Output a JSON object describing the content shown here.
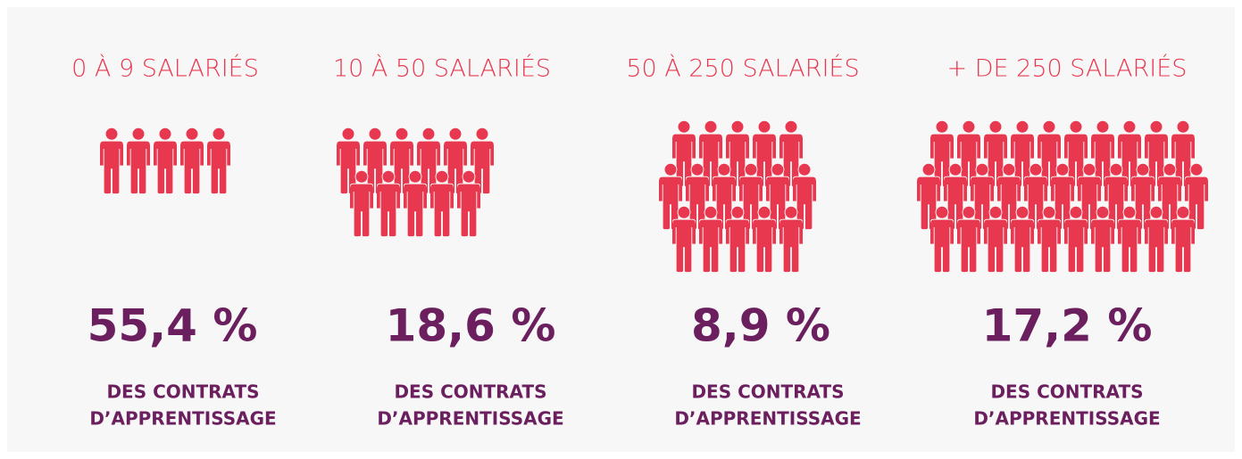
{
  "columns": [
    {
      "label": "0 À 9 SALARIÉS",
      "share": "55,4 %",
      "caption": [
        "DES CONTRATS",
        "D’APPRENTISSAGE"
      ]
    },
    {
      "label": "10 À 50 SALARIÉS",
      "share": "18,6 %",
      "caption": [
        "DES CONTRATS",
        "D’APPRENTISSAGE"
      ]
    },
    {
      "label": "50 À 250 SALARIÉS",
      "share": "8,9 %",
      "caption": [
        "DES CONTRATS",
        "D’APPRENTISSAGE"
      ]
    },
    {
      "label": "+ DE 250 SALARIÉS",
      "share": "17,2 %",
      "caption": [
        "DES CONTRATS",
        "D’APPRENTISSAGE"
      ]
    }
  ]
}
